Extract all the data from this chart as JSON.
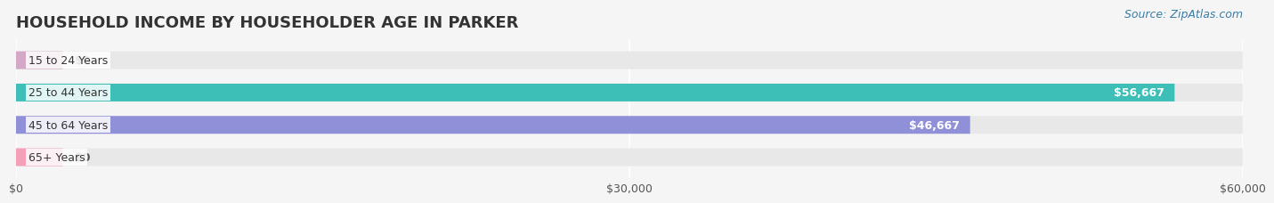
{
  "title": "HOUSEHOLD INCOME BY HOUSEHOLDER AGE IN PARKER",
  "source": "Source: ZipAtlas.com",
  "categories": [
    "15 to 24 Years",
    "25 to 44 Years",
    "45 to 64 Years",
    "65+ Years"
  ],
  "values": [
    0,
    56667,
    46667,
    0
  ],
  "bar_colors": [
    "#d4a8c7",
    "#3dbfb8",
    "#9090d8",
    "#f4a0b8"
  ],
  "bar_labels": [
    "$0",
    "$56,667",
    "$46,667",
    "$0"
  ],
  "xlim": [
    0,
    60000
  ],
  "xticks": [
    0,
    30000,
    60000
  ],
  "xticklabels": [
    "$0",
    "$30,000",
    "$60,000"
  ],
  "background_color": "#f5f5f5",
  "bar_bg_color": "#e8e8e8",
  "title_fontsize": 13,
  "label_fontsize": 9,
  "tick_fontsize": 9,
  "source_fontsize": 9
}
